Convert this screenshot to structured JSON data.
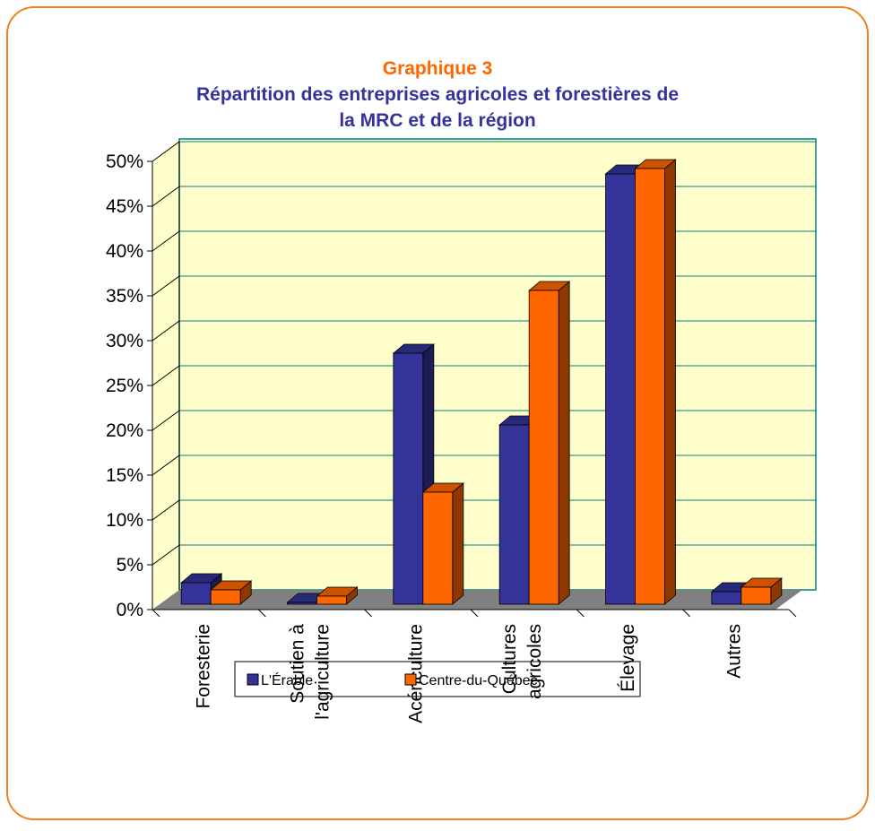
{
  "chart_data": {
    "type": "bar3d",
    "title": "Graphique 3",
    "subtitle": "Répartition des entreprises agricoles et forestières de\nla MRC et de la région",
    "categories": [
      "Foresterie",
      "Soutien à\nl'agriculture",
      "Acériculture",
      "Cultures\nagricoles",
      "Élevage",
      "Autres"
    ],
    "series": [
      {
        "name": "L'Érable",
        "color": "#333399",
        "values": [
          2.4,
          0.2,
          28,
          20,
          48,
          1.4
        ]
      },
      {
        "name": "Centre-du-Québec",
        "color": "#ff6600",
        "values": [
          1.6,
          0.9,
          12.5,
          35,
          48.6,
          1.9
        ]
      }
    ],
    "ylim": [
      0,
      50
    ],
    "yticks": [
      {
        "value": 0,
        "label": "0%"
      },
      {
        "value": 5,
        "label": "5%"
      },
      {
        "value": 10,
        "label": "10%"
      },
      {
        "value": 15,
        "label": "15%"
      },
      {
        "value": 20,
        "label": "20%"
      },
      {
        "value": 25,
        "label": "25%"
      },
      {
        "value": 30,
        "label": "30%"
      },
      {
        "value": 35,
        "label": "35%"
      },
      {
        "value": 40,
        "label": "40%"
      },
      {
        "value": 45,
        "label": "45%"
      },
      {
        "value": 50,
        "label": "50%"
      }
    ],
    "grid": true
  }
}
